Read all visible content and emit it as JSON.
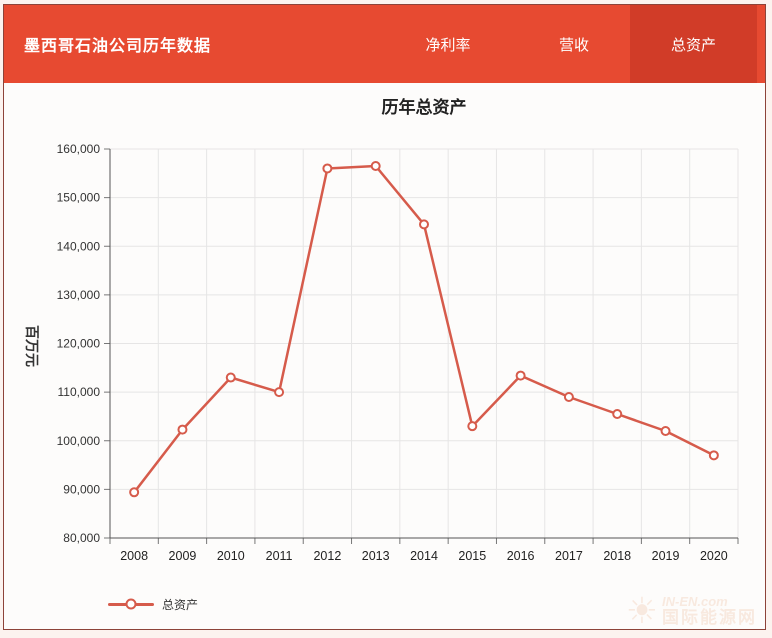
{
  "header": {
    "title": "墨西哥石油公司历年数据",
    "tabs": [
      {
        "label": "净利率",
        "active": false
      },
      {
        "label": "营收",
        "active": false
      },
      {
        "label": "总资产",
        "active": true
      }
    ]
  },
  "chart_data": {
    "type": "line",
    "title": "历年总资产",
    "ylabel": "百万元",
    "xlabel": "",
    "categories": [
      "2008",
      "2009",
      "2010",
      "2011",
      "2012",
      "2013",
      "2014",
      "2015",
      "2016",
      "2017",
      "2018",
      "2019",
      "2020"
    ],
    "series": [
      {
        "name": "总资产",
        "values": [
          89400,
          102300,
          113000,
          110000,
          156000,
          156500,
          144500,
          103000,
          113400,
          109000,
          105500,
          102000,
          97000
        ]
      }
    ],
    "ylim": [
      80000,
      160000
    ],
    "ytick_step": 10000,
    "grid": true,
    "legend_position": "bottom-left"
  },
  "legend": {
    "label": "总资产"
  },
  "watermark": {
    "text_en": "IN-EN.com",
    "text_cn": "国际能源网",
    "icon": "sun-icon"
  },
  "colors": {
    "header_bg": "#e74a31",
    "active_tab_bg": "#d13c28",
    "line": "#d65b4b",
    "grid": "#e6e5e5",
    "axis": "#555555",
    "tick": "#777777",
    "label_text": "#333333",
    "frame_border": "#8d4339",
    "card_bg": "#fdfcfb"
  }
}
